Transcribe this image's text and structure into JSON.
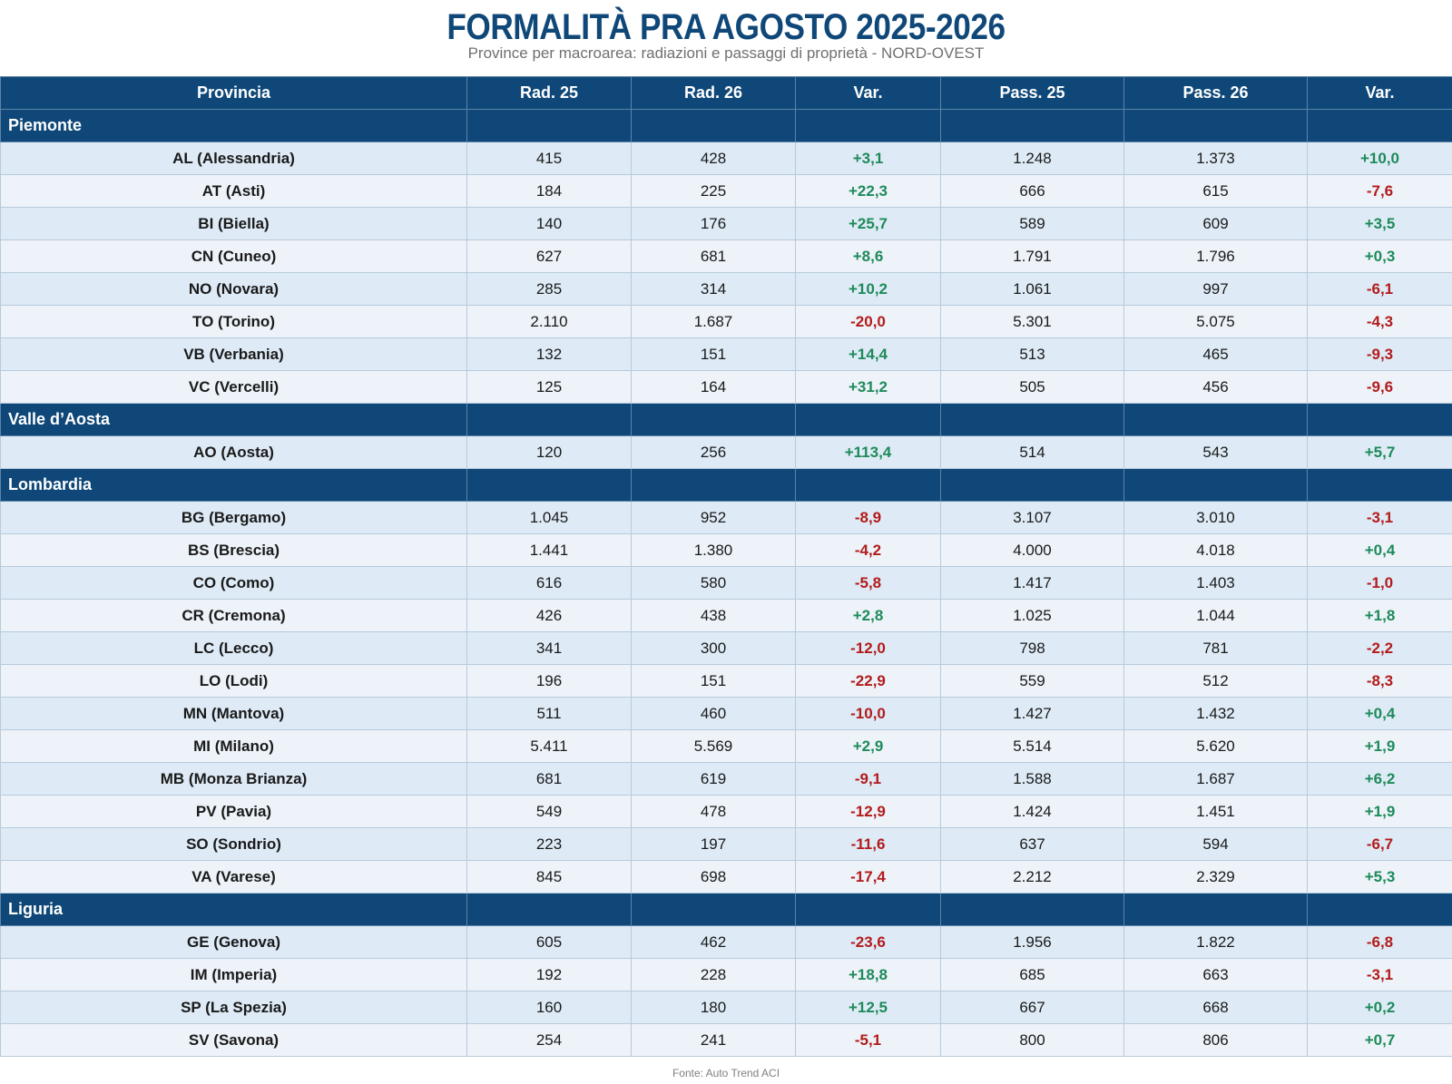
{
  "title": "FORMALITÀ PRA AGOSTO 2025-2026",
  "subtitle": "Province per macroarea: radiazioni e passaggi di proprietà - NORD-OVEST",
  "columns": [
    "Provincia",
    "Rad. 25",
    "Rad. 26",
    "Var.",
    "Pass. 25",
    "Pass. 26",
    "Var."
  ],
  "colors": {
    "header_bg": "#0f4878",
    "positive": "#1e8a5a",
    "negative": "#b31b1b"
  },
  "regions": [
    {
      "name": "Piemonte",
      "rows": [
        [
          "AL (Alessandria)",
          "415",
          "428",
          "+3,1",
          "1.248",
          "1.373",
          "+10,0"
        ],
        [
          "AT (Asti)",
          "184",
          "225",
          "+22,3",
          "666",
          "615",
          "-7,6"
        ],
        [
          "BI (Biella)",
          "140",
          "176",
          "+25,7",
          "589",
          "609",
          "+3,5"
        ],
        [
          "CN (Cuneo)",
          "627",
          "681",
          "+8,6",
          "1.791",
          "1.796",
          "+0,3"
        ],
        [
          "NO (Novara)",
          "285",
          "314",
          "+10,2",
          "1.061",
          "997",
          "-6,1"
        ],
        [
          "TO (Torino)",
          "2.110",
          "1.687",
          "-20,0",
          "5.301",
          "5.075",
          "-4,3"
        ],
        [
          "VB (Verbania)",
          "132",
          "151",
          "+14,4",
          "513",
          "465",
          "-9,3"
        ],
        [
          "VC (Vercelli)",
          "125",
          "164",
          "+31,2",
          "505",
          "456",
          "-9,6"
        ]
      ]
    },
    {
      "name": "Valle d’Aosta",
      "rows": [
        [
          "AO (Aosta)",
          "120",
          "256",
          "+113,4",
          "514",
          "543",
          "+5,7"
        ]
      ]
    },
    {
      "name": "Lombardia",
      "rows": [
        [
          "BG (Bergamo)",
          "1.045",
          "952",
          "-8,9",
          "3.107",
          "3.010",
          "-3,1"
        ],
        [
          "BS (Brescia)",
          "1.441",
          "1.380",
          "-4,2",
          "4.000",
          "4.018",
          "+0,4"
        ],
        [
          "CO (Como)",
          "616",
          "580",
          "-5,8",
          "1.417",
          "1.403",
          "-1,0"
        ],
        [
          "CR (Cremona)",
          "426",
          "438",
          "+2,8",
          "1.025",
          "1.044",
          "+1,8"
        ],
        [
          "LC (Lecco)",
          "341",
          "300",
          "-12,0",
          "798",
          "781",
          "-2,2"
        ],
        [
          "LO (Lodi)",
          "196",
          "151",
          "-22,9",
          "559",
          "512",
          "-8,3"
        ],
        [
          "MN (Mantova)",
          "511",
          "460",
          "-10,0",
          "1.427",
          "1.432",
          "+0,4"
        ],
        [
          "MI (Milano)",
          "5.411",
          "5.569",
          "+2,9",
          "5.514",
          "5.620",
          "+1,9"
        ],
        [
          "MB (Monza Brianza)",
          "681",
          "619",
          "-9,1",
          "1.588",
          "1.687",
          "+6,2"
        ],
        [
          "PV (Pavia)",
          "549",
          "478",
          "-12,9",
          "1.424",
          "1.451",
          "+1,9"
        ],
        [
          "SO (Sondrio)",
          "223",
          "197",
          "-11,6",
          "637",
          "594",
          "-6,7"
        ],
        [
          "VA (Varese)",
          "845",
          "698",
          "-17,4",
          "2.212",
          "2.329",
          "+5,3"
        ]
      ]
    },
    {
      "name": "Liguria",
      "rows": [
        [
          "GE (Genova)",
          "605",
          "462",
          "-23,6",
          "1.956",
          "1.822",
          "-6,8"
        ],
        [
          "IM (Imperia)",
          "192",
          "228",
          "+18,8",
          "685",
          "663",
          "-3,1"
        ],
        [
          "SP (La Spezia)",
          "160",
          "180",
          "+12,5",
          "667",
          "668",
          "+0,2"
        ],
        [
          "SV (Savona)",
          "254",
          "241",
          "-5,1",
          "800",
          "806",
          "+0,7"
        ]
      ]
    }
  ],
  "footer": "Fonte: Auto Trend ACI"
}
